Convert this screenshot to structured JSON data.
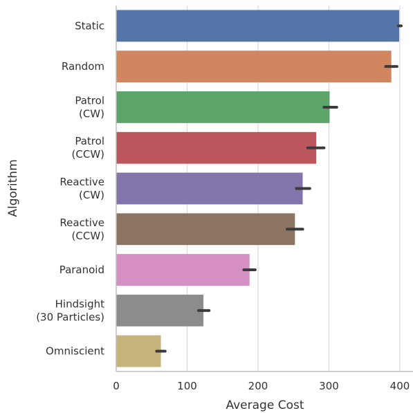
{
  "chart_data": {
    "type": "bar",
    "orientation": "horizontal",
    "xlabel": "Average Cost",
    "ylabel": "Algorithm",
    "xlim": [
      0,
      420
    ],
    "xticks": [
      0,
      100,
      200,
      300,
      400
    ],
    "grid": true,
    "categories": [
      {
        "lines": [
          "Static"
        ]
      },
      {
        "lines": [
          "Random"
        ]
      },
      {
        "lines": [
          "Patrol",
          "(CW)"
        ]
      },
      {
        "lines": [
          "Patrol",
          "(CCW)"
        ]
      },
      {
        "lines": [
          "Reactive",
          "(CW)"
        ]
      },
      {
        "lines": [
          "Reactive",
          "(CCW)"
        ]
      },
      {
        "lines": [
          "Paranoid"
        ]
      },
      {
        "lines": [
          "Hindsight",
          "(30 Particles)"
        ]
      },
      {
        "lines": [
          "Omniscient"
        ]
      }
    ],
    "values": [
      399,
      388,
      301,
      282,
      263,
      252,
      188,
      123,
      63
    ],
    "errors": [
      [
        398,
        402
      ],
      [
        380,
        396
      ],
      [
        293,
        311
      ],
      [
        270,
        293
      ],
      [
        254,
        273
      ],
      [
        241,
        263
      ],
      [
        180,
        196
      ],
      [
        116,
        131
      ],
      [
        57,
        69
      ]
    ],
    "colors": [
      "#5575a8",
      "#d0865e",
      "#5da46b",
      "#bd575e",
      "#8374ab",
      "#8c7462",
      "#d68fc3",
      "#8c8c8c",
      "#c5b37a"
    ]
  }
}
